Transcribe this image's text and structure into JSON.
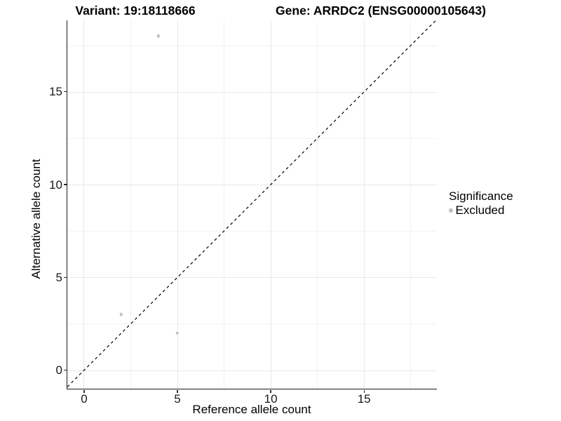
{
  "chart_data": {
    "type": "scatter",
    "title_left": "Variant: 19:18118666",
    "title_right": "Gene: ARRDC2 (ENSG00000105643)",
    "xlabel": "Reference allele count",
    "ylabel": "Alternative allele count",
    "xlim": [
      -0.9,
      18.9
    ],
    "ylim": [
      -1.0,
      18.85
    ],
    "x_major_ticks": [
      0,
      5,
      10,
      15
    ],
    "x_minor_ticks": [
      2.5,
      7.5,
      12.5,
      17.5
    ],
    "y_major_ticks": [
      0,
      5,
      10,
      15
    ],
    "y_minor_ticks": [
      2.5,
      7.5,
      12.5,
      17.5
    ],
    "grid": true,
    "identity_line": {
      "equation": "y = x",
      "style": "dashed",
      "color": "#000000"
    },
    "series": [
      {
        "name": "Excluded",
        "color": "#c3c3c3",
        "points": [
          {
            "x": 2,
            "y": 3
          },
          {
            "x": 5,
            "y": 2
          },
          {
            "x": 4,
            "y": 18
          }
        ]
      }
    ],
    "legend": {
      "title": "Significance",
      "position": "right",
      "items": [
        {
          "label": "Excluded",
          "color": "#c3c3c3"
        }
      ]
    }
  },
  "colors": {
    "background": "#ffffff",
    "axis_line": "#1a1a1a",
    "grid_major": "#e7e7e7",
    "grid_minor": "#f2f2f2",
    "tick_text": "#1a1a1a",
    "title_text": "#000000"
  }
}
